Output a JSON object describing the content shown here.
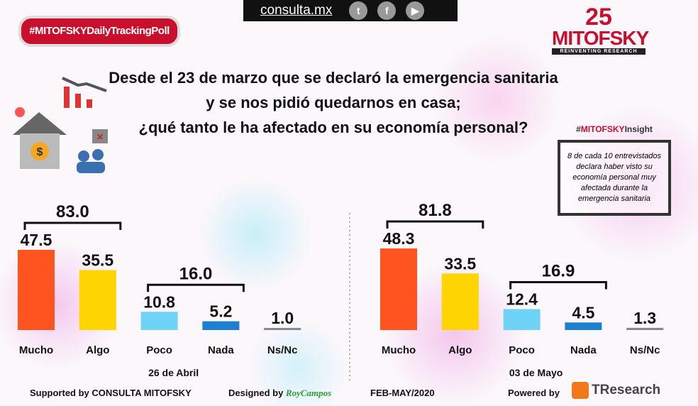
{
  "header": {
    "hashtag": "#MITOFSKYDailyTrackingPoll",
    "site": "consulta.mx",
    "social": [
      "twitter-icon",
      "facebook-icon",
      "youtube-icon"
    ],
    "logo": {
      "years": "25",
      "brand": "MITOFSKY",
      "tagline": "REINVENTING RESEARCH"
    }
  },
  "question": [
    "Desde el 23 de marzo que se declaró la emergencia sanitaria",
    "y se nos pidió quedarnos en casa;",
    "¿qué tanto le ha afectado en su economía personal?"
  ],
  "insight": {
    "hashtag_prefix": "#",
    "hashtag_brand": "MITOFSKY",
    "hashtag_suffix": "Insight",
    "text": "8 de cada 10 entrevistados declara haber visto su economía personal muy afectada durante la emergencia sanitaria"
  },
  "chart_data": [
    {
      "type": "bar",
      "title": "26 de Abril",
      "categories": [
        "Mucho",
        "Algo",
        "Poco",
        "Nada",
        "Ns/Nc"
      ],
      "values": [
        47.5,
        35.5,
        10.8,
        5.2,
        1.0
      ],
      "groups": [
        {
          "label": "83.0",
          "members": [
            "Mucho",
            "Algo"
          ]
        },
        {
          "label": "16.0",
          "members": [
            "Poco",
            "Nada"
          ]
        }
      ],
      "colors": [
        "#ff5420",
        "#ffd500",
        "#6ed3f6",
        "#1f7fd0",
        "#888888"
      ]
    },
    {
      "type": "bar",
      "title": "03 de Mayo",
      "categories": [
        "Mucho",
        "Algo",
        "Poco",
        "Nada",
        "Ns/Nc"
      ],
      "values": [
        48.3,
        33.5,
        12.4,
        4.5,
        1.3
      ],
      "groups": [
        {
          "label": "81.8",
          "members": [
            "Mucho",
            "Algo"
          ]
        },
        {
          "label": "16.9",
          "members": [
            "Poco",
            "Nada"
          ]
        }
      ],
      "colors": [
        "#ff5420",
        "#ffd500",
        "#6ed3f6",
        "#1f7fd0",
        "#888888"
      ]
    }
  ],
  "footer": {
    "supported": "Supported by  CONSULTA  MITOFSKY",
    "designed": "Designed by",
    "designer": "RoyCampos",
    "period": "FEB-MAY/2020",
    "powered": "Powered by",
    "powered_brand": "TResearch"
  }
}
